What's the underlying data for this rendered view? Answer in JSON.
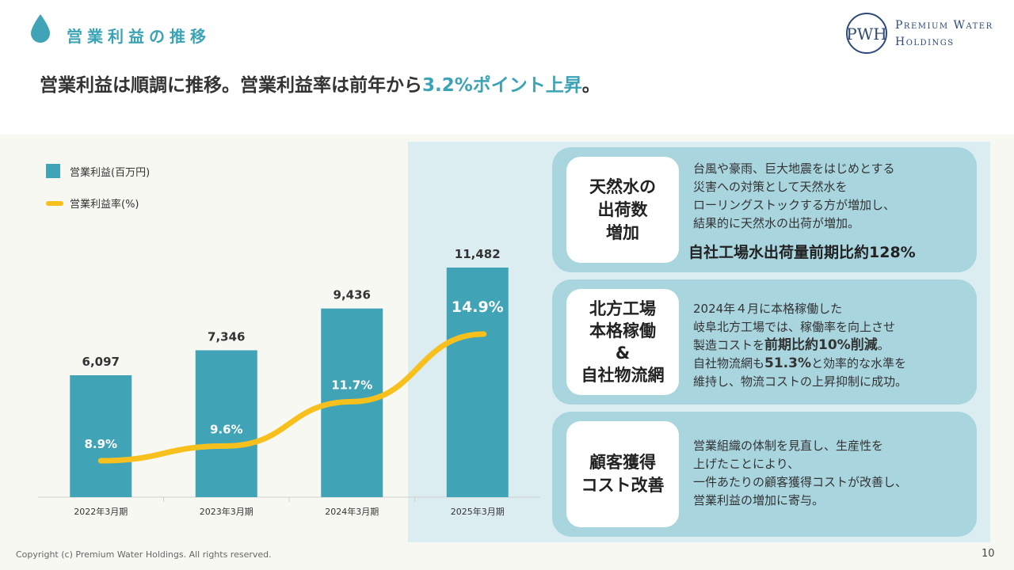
{
  "header": {
    "section_title": "営業利益の推移",
    "headline_prefix": "営業利益は順調に推移。営業利益率は前年から",
    "headline_accent": "3.2%ポイント上昇",
    "headline_suffix": "。",
    "logo_line1": "Premium Water",
    "logo_line2": "Holdings",
    "logo_mark": "PWH"
  },
  "legend": {
    "bar_label": "営業利益(百万円)",
    "line_label": "営業利益率(%)"
  },
  "chart_data": {
    "type": "bar",
    "categories": [
      "2022年3月期",
      "2023年3月期",
      "2024年3月期",
      "2025年3月期"
    ],
    "series": [
      {
        "name": "営業利益(百万円)",
        "type": "bar",
        "values": [
          6097,
          7346,
          9436,
          11482
        ],
        "value_labels": [
          "6,097",
          "7,346",
          "9,436",
          "11,482"
        ]
      },
      {
        "name": "営業利益率(%)",
        "type": "line",
        "values": [
          8.9,
          9.6,
          11.7,
          14.9
        ],
        "value_labels": [
          "8.9%",
          "9.6%",
          "11.7%",
          "14.9%"
        ]
      }
    ],
    "legend_position": "top-left",
    "grid": false,
    "colors": {
      "bar": "#41a4b6",
      "line": "#f7c01c"
    }
  },
  "cards": [
    {
      "title": "天然水の\n出荷数\n増加",
      "lines": [
        "台風や豪雨、巨大地震をはじめとする",
        "災害への対策として天然水を",
        "ローリングストックする方が増加し、",
        "結果的に天然水の出荷が増加。"
      ],
      "highlight": "自社工場水出荷量前期比約128%"
    },
    {
      "title": "北方工場\n本格稼働\n&\n自社物流網",
      "line1": "2024年４月に本格稼働した",
      "line2": "岐阜北方工場では、稼働率を向上させ",
      "line3_pre": "製造コストを",
      "line3_strong": "前期比約10%削減",
      "line3_post": "。",
      "line4_pre": "自社物流網も",
      "line4_strong": "51.3%",
      "line4_post": "と効率的な水準を",
      "line5": "維持し、物流コストの上昇抑制に成功。"
    },
    {
      "title": "顧客獲得\nコスト改善",
      "lines": [
        "営業組織の体制を見直し、生産性を",
        "上げたことにより、",
        "一件あたりの顧客獲得コストが改善し、",
        "営業利益の増加に寄与。"
      ]
    }
  ],
  "footer": {
    "copyright": "Copyright (c) Premium Water Holdings. All rights reserved.",
    "page_number": "10"
  }
}
